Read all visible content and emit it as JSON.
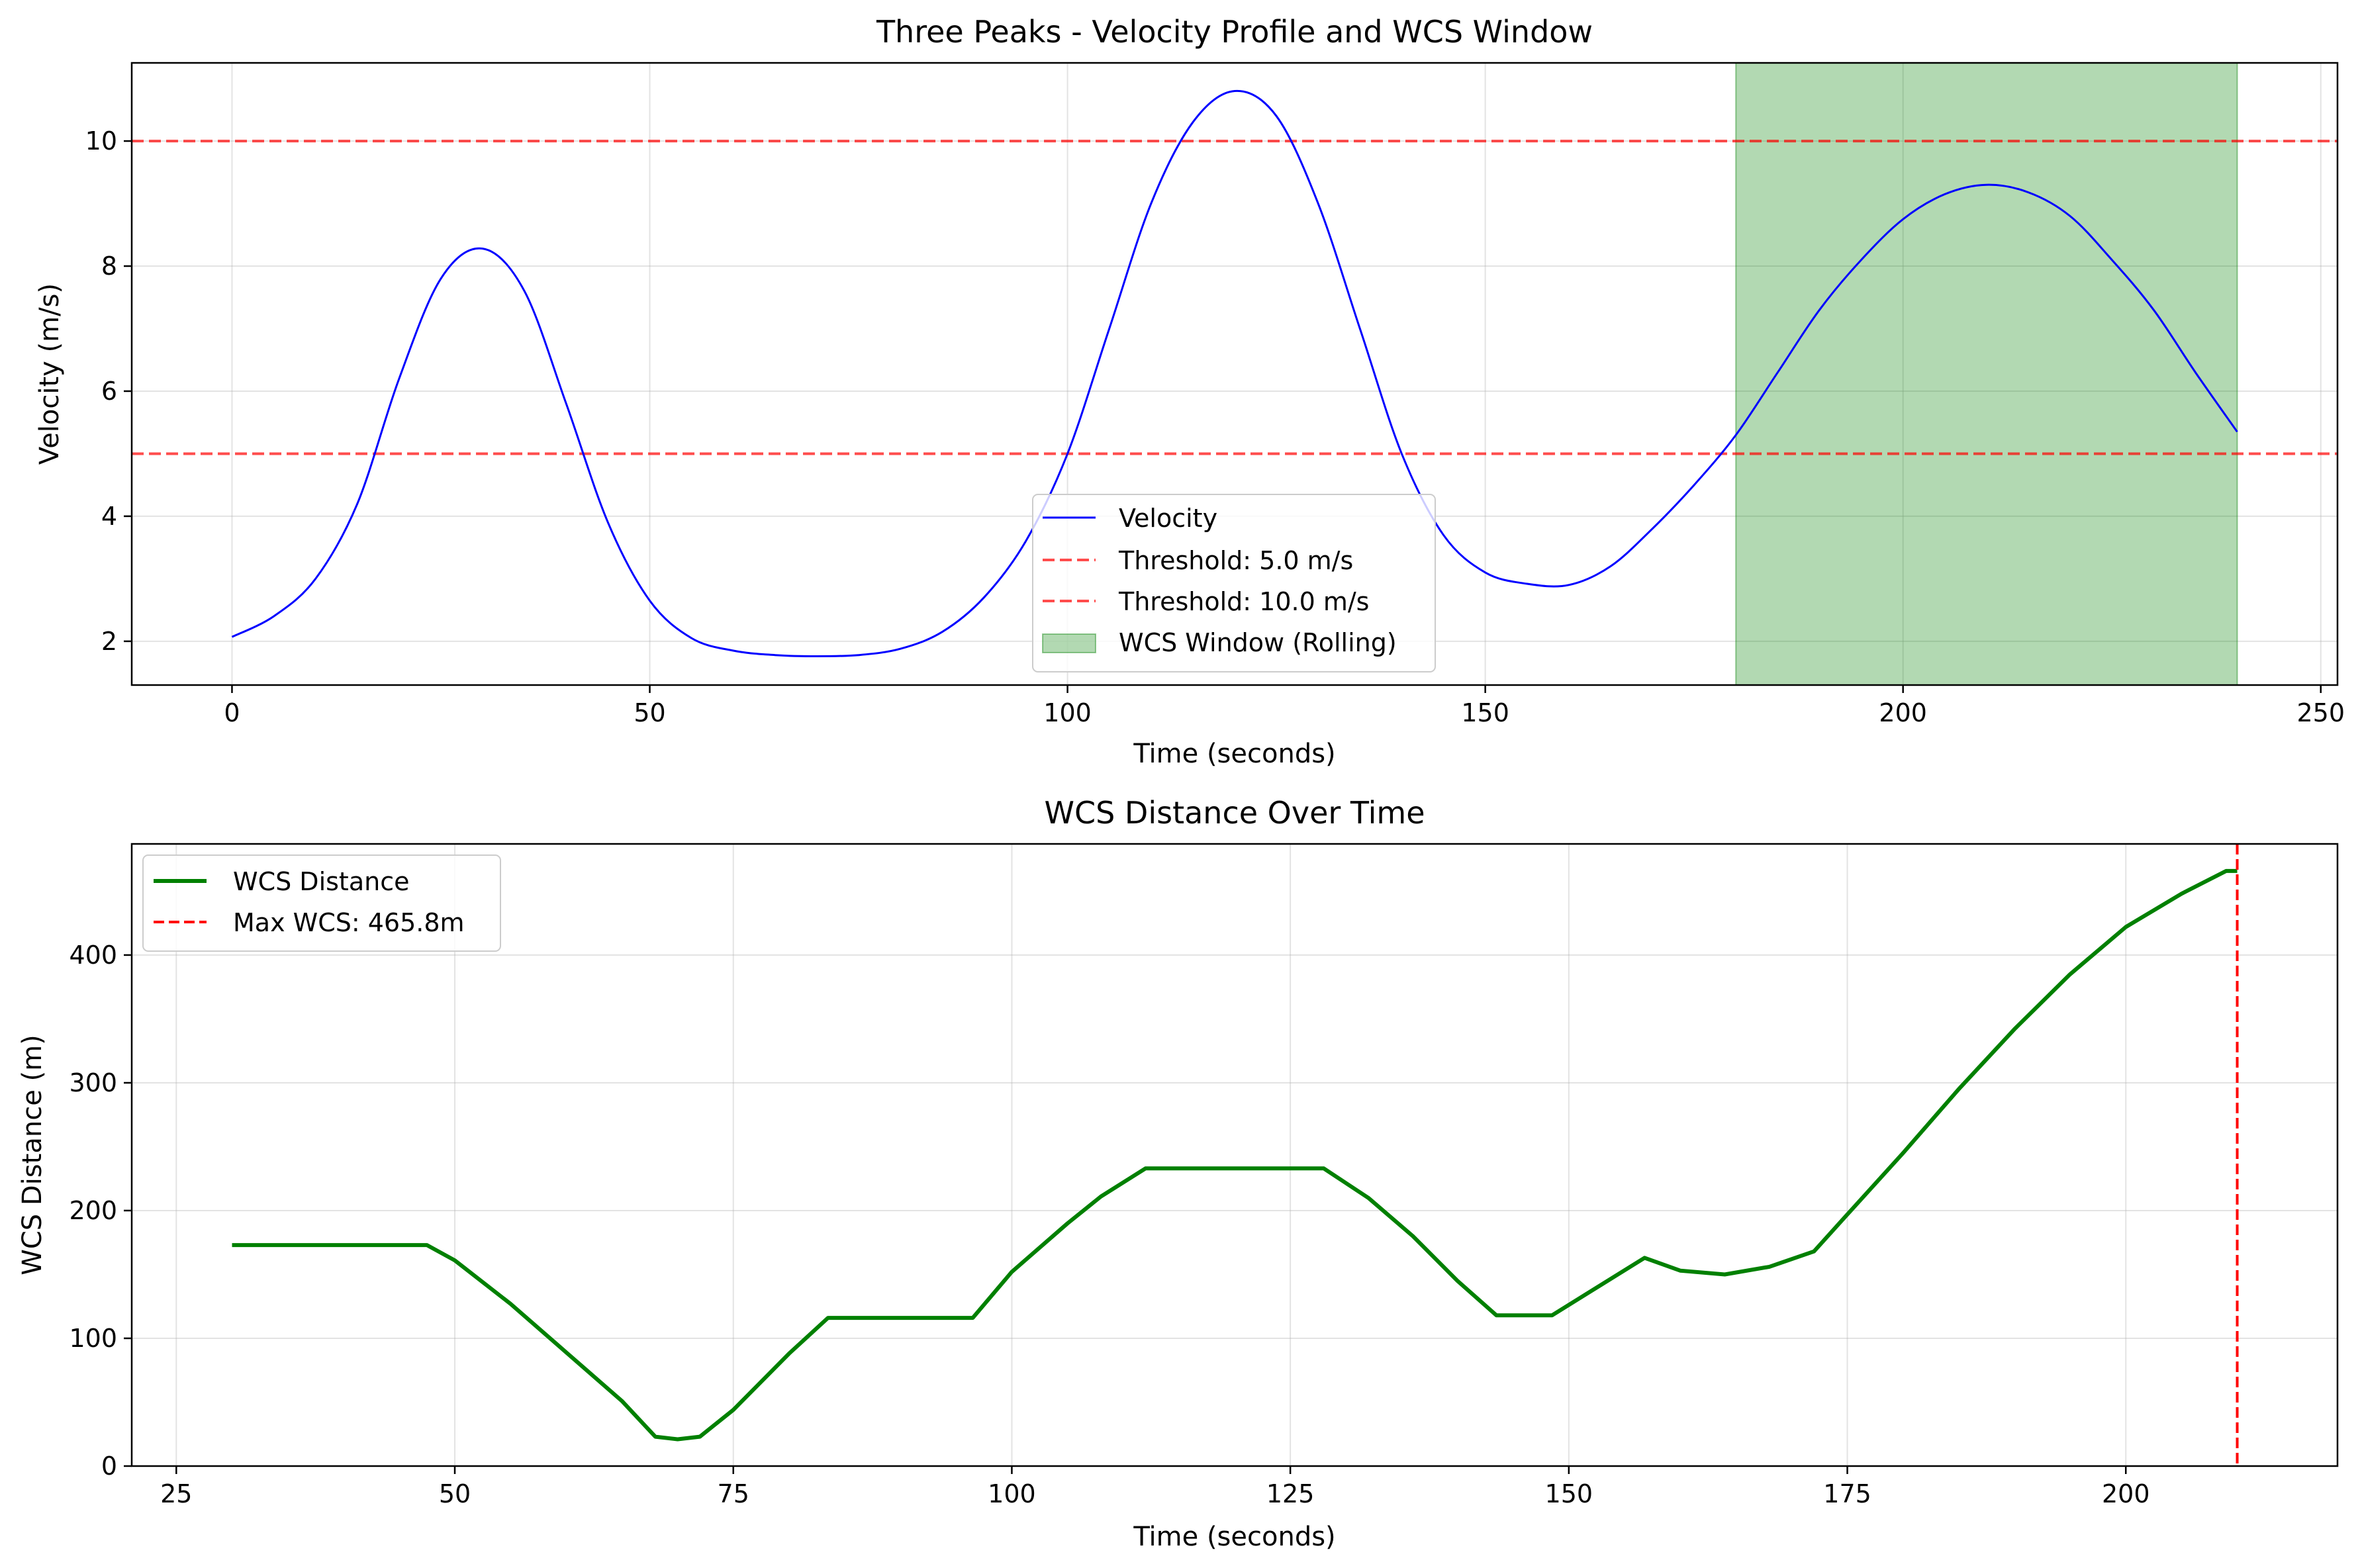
{
  "chart_data": [
    {
      "type": "line",
      "title": "Three Peaks - Velocity Profile and WCS Window",
      "xlabel": "Time (seconds)",
      "ylabel": "Velocity (m/s)",
      "xlim": [
        -12,
        252
      ],
      "ylim": [
        1.3,
        11.25
      ],
      "xticks": [
        0,
        50,
        100,
        150,
        200,
        250
      ],
      "yticks": [
        2,
        4,
        6,
        8,
        10
      ],
      "grid": true,
      "legend_position": "bottom-center",
      "series": [
        {
          "name": "Velocity",
          "color": "#0000ff",
          "x": [
            0,
            5,
            10,
            15,
            20,
            25,
            30,
            35,
            40,
            45,
            50,
            55,
            60,
            65,
            70,
            75,
            80,
            85,
            90,
            95,
            100,
            105,
            110,
            115,
            120,
            125,
            130,
            135,
            140,
            145,
            150,
            155,
            160,
            165,
            170,
            175,
            180,
            185,
            190,
            195,
            200,
            205,
            210,
            215,
            220,
            225,
            230,
            235,
            240
          ],
          "y": [
            2.07,
            2.4,
            3.0,
            4.2,
            6.2,
            7.8,
            8.28,
            7.6,
            5.8,
            3.9,
            2.65,
            2.05,
            1.85,
            1.78,
            1.76,
            1.78,
            1.88,
            2.15,
            2.7,
            3.6,
            5.0,
            7.0,
            9.0,
            10.3,
            10.8,
            10.4,
            9.0,
            7.0,
            5.0,
            3.7,
            3.1,
            2.92,
            2.9,
            3.2,
            3.8,
            4.5,
            5.3,
            6.3,
            7.3,
            8.1,
            8.75,
            9.15,
            9.3,
            9.18,
            8.8,
            8.1,
            7.3,
            6.3,
            5.35
          ]
        }
      ],
      "thresholds": [
        {
          "name": "Threshold: 5.0 m/s",
          "value": 5.0,
          "color": "#ff0000"
        },
        {
          "name": "Threshold: 10.0 m/s",
          "value": 10.0,
          "color": "#ff0000"
        }
      ],
      "spans": [
        {
          "name": "WCS Window (Rolling)",
          "x_start": 180,
          "x_end": 240,
          "color": "#008000"
        }
      ]
    },
    {
      "type": "line",
      "title": "WCS Distance Over Time",
      "xlabel": "Time (seconds)",
      "ylabel": "WCS Distance (m)",
      "xlim": [
        21,
        219
      ],
      "ylim": [
        0,
        487
      ],
      "xticks": [
        25,
        50,
        75,
        100,
        125,
        150,
        175,
        200
      ],
      "yticks": [
        0,
        100,
        200,
        300,
        400
      ],
      "grid": true,
      "legend_position": "top-left",
      "series": [
        {
          "name": "WCS Distance",
          "color": "#008000",
          "x": [
            30,
            47.5,
            50,
            55,
            60,
            65,
            68,
            70,
            72,
            75,
            80,
            83.5,
            96.5,
            100,
            105,
            108,
            112,
            128,
            132,
            136,
            140,
            143.5,
            148.5,
            152,
            156.8,
            160,
            164,
            168,
            172,
            175,
            180,
            185,
            190,
            195,
            200,
            205,
            209,
            210
          ],
          "y": [
            173,
            173,
            161,
            127,
            89,
            51,
            23,
            21,
            23,
            44,
            88,
            116,
            116,
            152,
            190,
            211,
            233,
            233,
            210,
            180,
            145,
            118,
            118,
            137,
            163,
            153,
            150,
            156,
            168,
            197,
            245,
            295,
            342,
            385,
            422,
            448,
            465.8,
            465.8
          ]
        }
      ],
      "vlines": [
        {
          "name": "Max WCS: 465.8m",
          "x": 210,
          "color": "#ff0000"
        }
      ]
    }
  ]
}
